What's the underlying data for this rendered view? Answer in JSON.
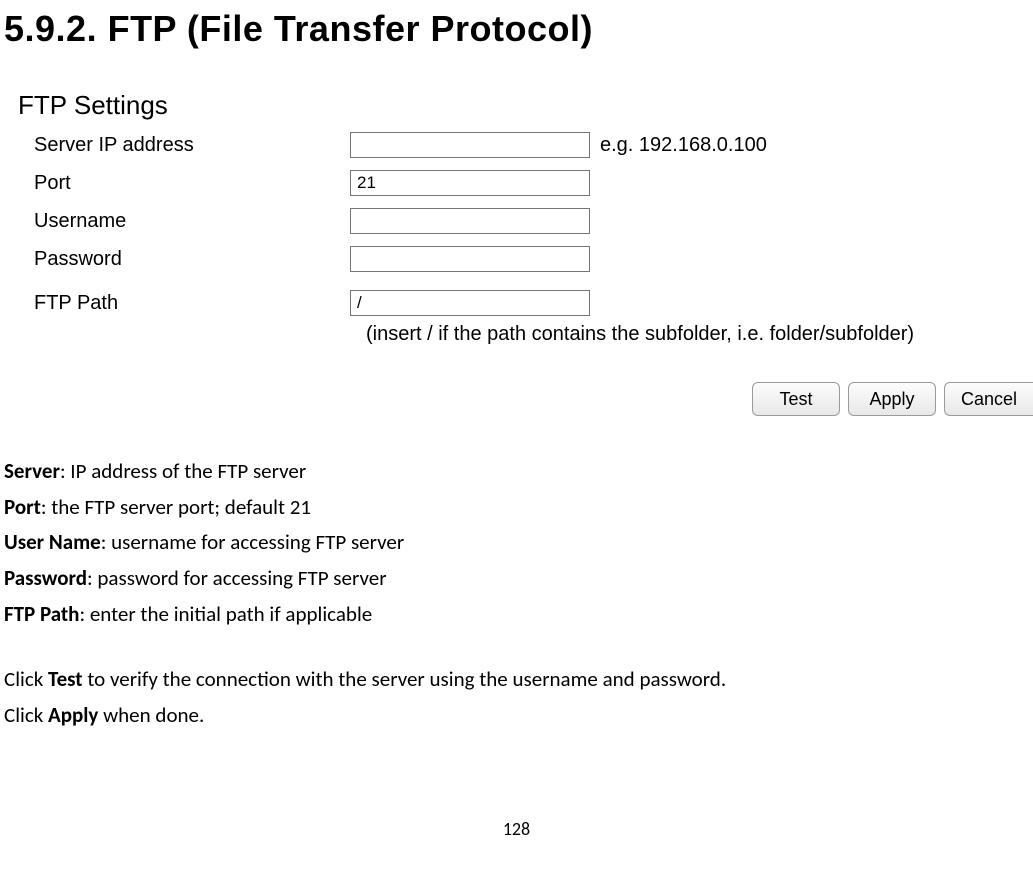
{
  "title": "5.9.2.   FTP (File Transfer Protocol)",
  "panel": {
    "heading": "FTP Settings",
    "fields": {
      "server_ip": {
        "label": "Server IP address",
        "value": "",
        "hint": "e.g. 192.168.0.100"
      },
      "port": {
        "label": "Port",
        "value": "21"
      },
      "username": {
        "label": "Username",
        "value": ""
      },
      "password": {
        "label": "Password",
        "value": ""
      },
      "ftp_path": {
        "label": "FTP Path",
        "value": "/"
      }
    },
    "path_note": "(insert / if the path contains the subfolder, i.e. folder/subfolder)"
  },
  "buttons": {
    "test": "Test",
    "apply": "Apply",
    "cancel": "Cancel"
  },
  "descriptions": [
    {
      "term": "Server",
      "text": ": IP address of the FTP server"
    },
    {
      "term": "Port",
      "text": ": the FTP server port; default 21"
    },
    {
      "term": "User Name",
      "text": ": username for accessing FTP server"
    },
    {
      "term": "Password",
      "text": ": password for accessing FTP server"
    },
    {
      "term": "FTP Path",
      "text": ": enter the initial path if applicable"
    }
  ],
  "action_lines": {
    "line1_pre": "Click ",
    "line1_bold": "Test",
    "line1_post": " to verify the connection with the server using the username and password.",
    "line2_pre": "Click ",
    "line2_bold": "Apply",
    "line2_post": " when done."
  },
  "page_number": "128"
}
